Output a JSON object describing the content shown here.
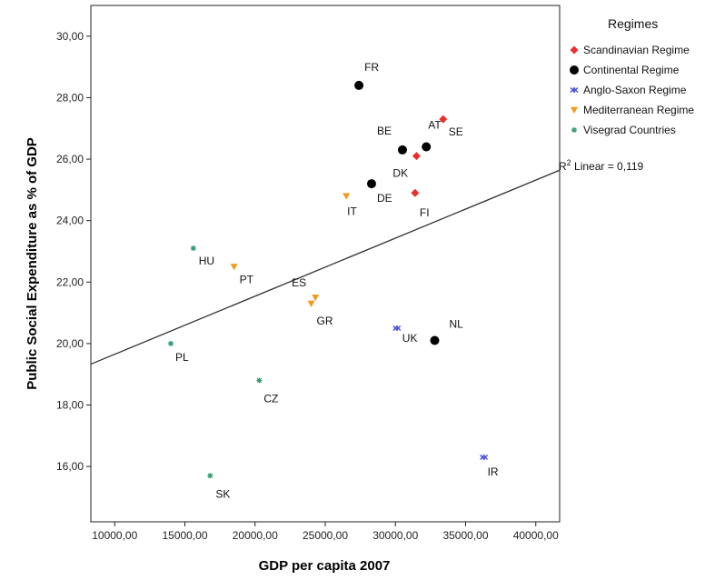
{
  "chart_data": {
    "type": "scatter",
    "xlabel": "GDP per capita 2007",
    "ylabel": "Public Social Expenditure as % of GDP",
    "xlim": [
      8300,
      41700
    ],
    "ylim": [
      14.2,
      31.0
    ],
    "xticks": [
      10000,
      15000,
      20000,
      25000,
      30000,
      35000,
      40000
    ],
    "xtick_labels": [
      "10000,00",
      "15000,00",
      "20000,00",
      "25000,00",
      "30000,00",
      "35000,00",
      "40000,00"
    ],
    "yticks": [
      16,
      18,
      20,
      22,
      24,
      26,
      28,
      30
    ],
    "ytick_labels": [
      "16,00",
      "18,00",
      "20,00",
      "22,00",
      "24,00",
      "26,00",
      "28,00",
      "30,00"
    ],
    "grid": false,
    "legend": {
      "title": "Regimes",
      "position": "right"
    },
    "series": [
      {
        "name": "Scandinavian Regime",
        "marker": "diamond",
        "color": "#e8312f",
        "points": [
          {
            "label": "SE",
            "x": 33400,
            "y": 27.3
          },
          {
            "label": "DK",
            "x": 31500,
            "y": 26.1
          },
          {
            "label": "FI",
            "x": 31400,
            "y": 24.9
          }
        ]
      },
      {
        "name": "Continental Regime",
        "marker": "circle",
        "color": "#000000",
        "points": [
          {
            "label": "FR",
            "x": 27400,
            "y": 28.4
          },
          {
            "label": "BE",
            "x": 30500,
            "y": 26.3
          },
          {
            "label": "AT",
            "x": 32200,
            "y": 26.4
          },
          {
            "label": "DE",
            "x": 28300,
            "y": 25.2
          },
          {
            "label": "NL",
            "x": 32800,
            "y": 20.1
          }
        ]
      },
      {
        "name": "Anglo-Saxon Regime",
        "marker": "cross",
        "color": "#3d48e0",
        "points": [
          {
            "label": "UK",
            "x": 30100,
            "y": 20.5
          },
          {
            "label": "IR",
            "x": 36300,
            "y": 16.3
          }
        ]
      },
      {
        "name": "Mediterranean Regime",
        "marker": "triangle-down",
        "color": "#f39a1e",
        "points": [
          {
            "label": "IT",
            "x": 26500,
            "y": 24.8
          },
          {
            "label": "PT",
            "x": 18500,
            "y": 22.5
          },
          {
            "label": "ES",
            "x": 24300,
            "y": 21.5
          },
          {
            "label": "GR",
            "x": 24000,
            "y": 21.3
          }
        ]
      },
      {
        "name": "Visegrad Countries",
        "marker": "star",
        "color": "#2e9a6b",
        "points": [
          {
            "label": "HU",
            "x": 15600,
            "y": 23.1
          },
          {
            "label": "PL",
            "x": 14000,
            "y": 20.0
          },
          {
            "label": "CZ",
            "x": 20300,
            "y": 18.8
          },
          {
            "label": "SK",
            "x": 16800,
            "y": 15.7
          }
        ]
      }
    ],
    "fit_line": {
      "type": "linear",
      "label_prefix": "R",
      "label_superscript": "2",
      "label_suffix": " Linear = 0,119",
      "points": [
        [
          8300,
          19.33
        ],
        [
          41700,
          25.64
        ]
      ]
    }
  }
}
